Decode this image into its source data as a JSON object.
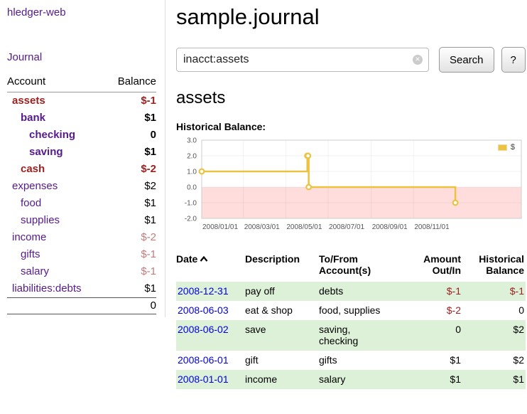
{
  "sidebar": {
    "app_title": "hledger-web",
    "journal_link": "Journal",
    "accounts": {
      "col_account": "Account",
      "col_balance": "Balance",
      "rows": [
        {
          "name": "assets",
          "balance": "$-1"
        },
        {
          "name": "bank",
          "balance": "$1"
        },
        {
          "name": "checking",
          "balance": "0"
        },
        {
          "name": "saving",
          "balance": "$1"
        },
        {
          "name": "cash",
          "balance": "$-2"
        },
        {
          "name": "expenses",
          "balance": "$2"
        },
        {
          "name": "food",
          "balance": "$1"
        },
        {
          "name": "supplies",
          "balance": "$1"
        },
        {
          "name": "income",
          "balance": "$-2"
        },
        {
          "name": "gifts",
          "balance": "$-1"
        },
        {
          "name": "salary",
          "balance": "$-1"
        },
        {
          "name": "liabilities:debts",
          "balance": "$1"
        }
      ],
      "total": "0"
    }
  },
  "header": {
    "title": "sample.journal"
  },
  "search": {
    "value": "inacct:assets",
    "search_button": "Search",
    "help_button": "?"
  },
  "account": {
    "title": "assets",
    "chart_title": "Historical Balance:"
  },
  "chart_data": {
    "type": "line",
    "step": true,
    "title": "Historical Balance:",
    "series": [
      {
        "name": "$",
        "color": "#edc240",
        "points": [
          [
            0,
            1
          ],
          [
            152,
            2
          ],
          [
            153,
            2
          ],
          [
            154,
            0
          ],
          [
            365,
            -1
          ]
        ],
        "point_dates": [
          "2008-01-01",
          "2008-06-01",
          "2008-06-02",
          "2008-06-03",
          "2008-12-31"
        ]
      }
    ],
    "xlim": [
      0,
      460
    ],
    "ylim": [
      -2,
      3
    ],
    "x_ticks": [
      {
        "pos": 0,
        "label": "2008/01/01"
      },
      {
        "pos": 60,
        "label": "2008/03/01"
      },
      {
        "pos": 121,
        "label": "2008/05/01"
      },
      {
        "pos": 182,
        "label": "2008/07/01"
      },
      {
        "pos": 244,
        "label": "2008/09/01"
      },
      {
        "pos": 305,
        "label": "2008/11/01"
      }
    ],
    "y_ticks": [
      {
        "v": 3,
        "label": "3.0"
      },
      {
        "v": 2,
        "label": "2.0"
      },
      {
        "v": 1,
        "label": "1.0"
      },
      {
        "v": 0,
        "label": "0.0"
      },
      {
        "v": -1,
        "label": "-1.0"
      },
      {
        "v": -2,
        "label": "-2.0"
      }
    ],
    "negative_region": {
      "from": -2,
      "to": 0,
      "color": "#fdd"
    },
    "legend": {
      "label": "$",
      "color": "#edc240"
    },
    "grid": true,
    "legend_position": "top-right"
  },
  "register": {
    "headers": {
      "date": "Date",
      "description": "Description",
      "account": "To/From\nAccount(s)",
      "amount": "Amount\nOut/In",
      "balance": "Historical\nBalance"
    },
    "rows": [
      {
        "date": "2008-12-31",
        "description": "pay off",
        "accounts": "debts",
        "amount": "$-1",
        "balance": "$-1"
      },
      {
        "date": "2008-06-03",
        "description": "eat & shop",
        "accounts": "food, supplies",
        "amount": "$-2",
        "balance": "0"
      },
      {
        "date": "2008-06-02",
        "description": "save",
        "accounts": "saving,\nchecking",
        "amount": "0",
        "balance": "$2"
      },
      {
        "date": "2008-06-01",
        "description": "gift",
        "accounts": "gifts",
        "amount": "$1",
        "balance": "$2"
      },
      {
        "date": "2008-01-01",
        "description": "income",
        "accounts": "salary",
        "amount": "$1",
        "balance": "$1"
      }
    ]
  }
}
